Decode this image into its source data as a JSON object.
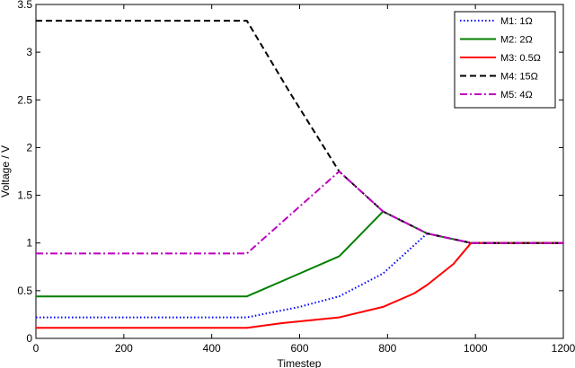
{
  "chart_data": {
    "type": "line",
    "title": "",
    "xlabel": "Timestep",
    "ylabel": "Voltage / V",
    "xlim": [
      0,
      1200
    ],
    "ylim": [
      0,
      3.5
    ],
    "xticks": [
      0,
      200,
      400,
      600,
      800,
      1000,
      1200
    ],
    "yticks": [
      0,
      0.5,
      1,
      1.5,
      2,
      2.5,
      3,
      3.5
    ],
    "xtick_labels": [
      "0",
      "200",
      "400",
      "600",
      "800",
      "1000",
      "1200"
    ],
    "ytick_labels": [
      "0",
      "0.5",
      "1",
      "1.5",
      "2",
      "2.5",
      "3",
      "3.5"
    ],
    "grid": false,
    "legend_position": "top-right",
    "series": [
      {
        "name": "M1: 1Ω",
        "color": "#0000ff",
        "line_style": "dotted",
        "x": [
          0,
          480,
          600,
          690,
          790,
          890,
          990,
          1200
        ],
        "y": [
          0.22,
          0.22,
          0.33,
          0.44,
          0.68,
          1.1,
          1.0,
          1.0
        ]
      },
      {
        "name": "M2: 2Ω",
        "color": "#007f00",
        "line_style": "solid",
        "x": [
          0,
          480,
          580,
          690,
          790,
          890,
          990,
          1200
        ],
        "y": [
          0.44,
          0.44,
          0.64,
          0.86,
          1.33,
          1.1,
          1.0,
          1.0
        ]
      },
      {
        "name": "M3: 0.5Ω",
        "color": "#ff0000",
        "line_style": "solid",
        "x": [
          0,
          480,
          560,
          690,
          790,
          860,
          890,
          950,
          990,
          1200
        ],
        "y": [
          0.11,
          0.11,
          0.16,
          0.22,
          0.33,
          0.47,
          0.56,
          0.78,
          1.0,
          1.0
        ]
      },
      {
        "name": "M4: 15Ω",
        "color": "#000000",
        "line_style": "dashed",
        "x": [
          0,
          480,
          580,
          690,
          790,
          890,
          990,
          1200
        ],
        "y": [
          3.33,
          3.33,
          2.56,
          1.75,
          1.33,
          1.1,
          1.0,
          1.0
        ]
      },
      {
        "name": "M5: 4Ω",
        "color": "#bf00bf",
        "line_style": "dashdot",
        "x": [
          0,
          480,
          580,
          690,
          790,
          890,
          990,
          1200
        ],
        "y": [
          0.89,
          0.89,
          1.3,
          1.75,
          1.33,
          1.1,
          1.0,
          1.0
        ]
      }
    ]
  }
}
